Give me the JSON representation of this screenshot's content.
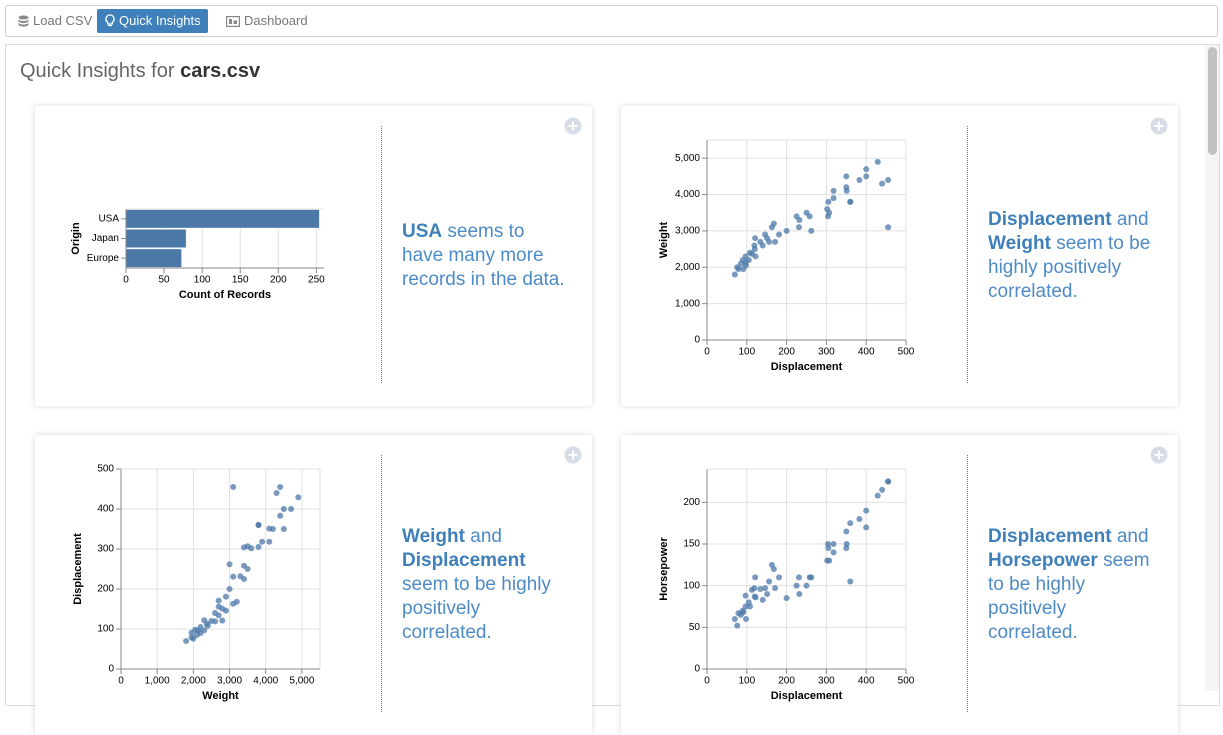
{
  "nav": {
    "tabs": [
      "Load CSV",
      "Quick Insights",
      "Dashboard"
    ],
    "active": 1
  },
  "header": {
    "prefix": "Quick Insights for",
    "file": "cars.csv"
  },
  "cards": [
    {
      "chart": {
        "type": "bar",
        "categories": [
          "USA",
          "Japan",
          "Europe"
        ],
        "values": [
          254,
          79,
          73
        ],
        "color": "#4c78a8",
        "x_label": "Count of Records",
        "y_label": "Origin",
        "xlim": [
          0,
          260
        ],
        "xticks": [
          0,
          50,
          100,
          150,
          200,
          250
        ],
        "grid": true
      },
      "insight": [
        {
          "text": "USA",
          "bold": true
        },
        {
          "text": "seems to have many more records in the data.",
          "bold": false
        }
      ]
    },
    {
      "chart": {
        "type": "scatter",
        "x_label": "Displacement",
        "y_label": "Weight",
        "color": "#4c78a8",
        "grid": true,
        "xlim": [
          0,
          500
        ],
        "xticks": [
          0,
          100,
          200,
          300,
          400,
          500
        ],
        "ylim": [
          0,
          5500
        ],
        "yticks": [
          0,
          {
            "value": 1000,
            "label": "1,000"
          },
          {
            "value": 2000,
            "label": "2,000"
          },
          {
            "value": 3000,
            "label": "3,000"
          },
          {
            "value": 4000,
            "label": "4,000"
          },
          {
            "value": 5000,
            "label": "5,000"
          }
        ],
        "x": [
          70,
          76,
          79,
          85,
          90,
          91,
          97,
          98,
          97,
          105,
          108,
          113,
          119,
          120,
          121,
          122,
          134,
          140,
          146,
          151,
          156,
          163,
          168,
          171,
          181,
          200,
          225,
          231,
          232,
          250,
          258,
          262,
          302,
          305,
          318,
          318,
          350,
          350,
          351,
          360,
          383,
          400,
          400,
          429,
          440,
          455,
          455,
          307,
          304,
          360
        ],
        "values": [
          1800,
          2000,
          1950,
          2100,
          2200,
          1950,
          2130,
          2050,
          2300,
          2200,
          2400,
          2370,
          2600,
          2500,
          2800,
          2300,
          2700,
          2600,
          2900,
          2800,
          2700,
          3100,
          3200,
          2700,
          2900,
          3000,
          3400,
          3100,
          3300,
          3500,
          3400,
          3000,
          3600,
          3800,
          4100,
          3900,
          4200,
          4500,
          4100,
          3800,
          4400,
          4500,
          4700,
          4900,
          4300,
          4400,
          3100,
          3500,
          3400,
          3800
        ]
      },
      "insight": [
        {
          "text": "Displacement",
          "bold": true
        },
        {
          "text": "and",
          "bold": false
        },
        {
          "text": "Weight",
          "bold": true
        },
        {
          "text": "seem to be highly positively correlated.",
          "bold": false
        }
      ]
    },
    {
      "chart": {
        "type": "scatter",
        "x_label": "Weight",
        "y_label": "Displacement",
        "color": "#4c78a8",
        "grid": true,
        "xlim": [
          0,
          5500
        ],
        "xticks": [
          0,
          {
            "value": 1000,
            "label": "1,000"
          },
          {
            "value": 2000,
            "label": "2,000"
          },
          {
            "value": 3000,
            "label": "3,000"
          },
          {
            "value": 4000,
            "label": "4,000"
          },
          {
            "value": 5000,
            "label": "5,000"
          }
        ],
        "ylim": [
          0,
          500
        ],
        "yticks": [
          0,
          100,
          200,
          300,
          400,
          500
        ],
        "x": [
          1800,
          2000,
          1950,
          2100,
          2200,
          1950,
          2130,
          2050,
          2300,
          2200,
          2400,
          2370,
          2600,
          2500,
          2800,
          2300,
          2700,
          2600,
          2900,
          2800,
          2700,
          3100,
          3200,
          2700,
          2900,
          3000,
          3400,
          3100,
          3300,
          3500,
          3400,
          3000,
          3600,
          3800,
          4100,
          3900,
          4200,
          4500,
          4100,
          3800,
          4400,
          4500,
          4700,
          4900,
          4300,
          4400,
          3100,
          3500,
          3400,
          3800
        ],
        "values": [
          70,
          76,
          79,
          85,
          90,
          91,
          97,
          98,
          97,
          105,
          108,
          113,
          119,
          120,
          121,
          122,
          134,
          140,
          146,
          151,
          156,
          163,
          168,
          171,
          181,
          200,
          225,
          231,
          232,
          250,
          258,
          262,
          302,
          305,
          318,
          318,
          350,
          350,
          351,
          360,
          383,
          400,
          400,
          429,
          440,
          455,
          455,
          307,
          304,
          360
        ]
      },
      "insight": [
        {
          "text": "Weight",
          "bold": true
        },
        {
          "text": "and",
          "bold": false
        },
        {
          "text": "Displacement",
          "bold": true
        },
        {
          "text": "seem to be highly positively correlated.",
          "bold": false
        }
      ]
    },
    {
      "chart": {
        "type": "scatter",
        "x_label": "Displacement",
        "y_label": "Horsepower",
        "color": "#4c78a8",
        "grid": true,
        "xlim": [
          0,
          500
        ],
        "xticks": [
          0,
          100,
          200,
          300,
          400,
          500
        ],
        "ylim": [
          0,
          240
        ],
        "yticks": [
          0,
          50,
          100,
          150,
          200
        ],
        "x": [
          70,
          76,
          79,
          85,
          90,
          91,
          97,
          98,
          97,
          105,
          108,
          113,
          119,
          120,
          121,
          122,
          134,
          140,
          146,
          151,
          156,
          163,
          168,
          171,
          181,
          200,
          225,
          231,
          232,
          250,
          258,
          262,
          302,
          305,
          318,
          318,
          350,
          350,
          351,
          360,
          383,
          400,
          400,
          429,
          440,
          455,
          455,
          307,
          304,
          360
        ],
        "values": [
          60,
          52,
          67,
          65,
          70,
          68,
          88,
          60,
          75,
          80,
          75,
          95,
          97,
          87,
          110,
          86,
          96,
          83,
          97,
          90,
          105,
          125,
          120,
          97,
          110,
          85,
          100,
          110,
          90,
          100,
          110,
          110,
          130,
          145,
          150,
          140,
          165,
          145,
          150,
          175,
          180,
          170,
          190,
          208,
          215,
          225,
          225,
          130,
          150,
          105
        ]
      },
      "insight": [
        {
          "text": "Displacement",
          "bold": true
        },
        {
          "text": "and",
          "bold": false
        },
        {
          "text": "Horsepower",
          "bold": true
        },
        {
          "text": "seem to be highly positively correlated.",
          "bold": false
        }
      ]
    }
  ]
}
